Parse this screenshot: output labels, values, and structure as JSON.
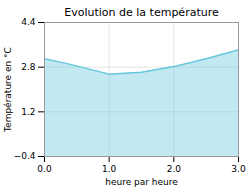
{
  "chart_data": {
    "type": "area",
    "title": "Evolution de la température",
    "xlabel": "heure par heure",
    "ylabel": "Température en °C",
    "x": [
      0,
      0.4,
      1.0,
      1.5,
      2.0,
      2.5,
      3.0
    ],
    "y": [
      3.1,
      2.9,
      2.55,
      2.62,
      2.82,
      3.1,
      3.42
    ],
    "color": "#66c8dc",
    "xlim": [
      0,
      3
    ],
    "ylim": [
      -0.4,
      4.4
    ],
    "xticks": [
      0,
      1,
      2,
      3
    ],
    "yticks": [
      -0.4,
      1.2,
      2.8,
      4.4
    ],
    "grid": true
  }
}
